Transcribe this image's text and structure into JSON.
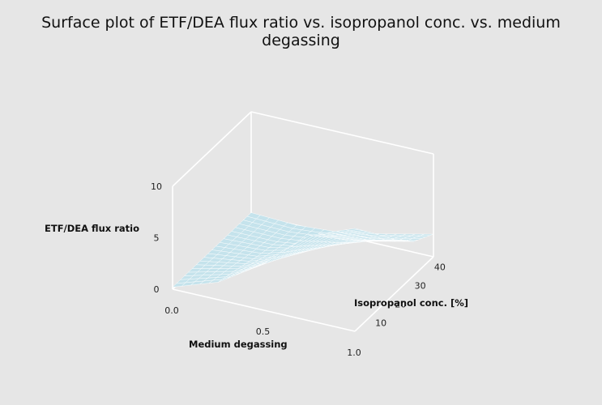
{
  "chart_data": {
    "type": "surface",
    "title": "Surface plot of ETF/DEA flux ratio vs. isopropanol conc. vs. medium degassing",
    "xlabel": "Medium degassing",
    "ylabel": "Isopropanol conc. [%]",
    "zlabel": "ETF/DEA flux ratio",
    "x_ticks": [
      "0.0",
      "0.5",
      "1.0"
    ],
    "y_ticks": [
      "10",
      "20",
      "30",
      "40"
    ],
    "z_ticks": [
      "0",
      "5",
      "10"
    ],
    "xlim": [
      0,
      1
    ],
    "ylim": [
      5,
      45
    ],
    "zlim": [
      0,
      10
    ],
    "x": [
      0.0,
      0.25,
      0.5,
      0.75,
      1.0
    ],
    "y": [
      5,
      15,
      25,
      35,
      45
    ],
    "z": [
      [
        0.2,
        1.7,
        4.5,
        8.3,
        10.0
      ],
      [
        0.2,
        1.2,
        3.3,
        6.3,
        7.7
      ],
      [
        0.2,
        0.6,
        2.0,
        4.2,
        5.3
      ],
      [
        0.2,
        0.2,
        0.8,
        2.3,
        3.3
      ],
      [
        0.2,
        0.0,
        0.3,
        1.2,
        2.2
      ]
    ],
    "surface_color": "#c5e3ec",
    "mesh_color": "#ffffff",
    "grid": false
  }
}
